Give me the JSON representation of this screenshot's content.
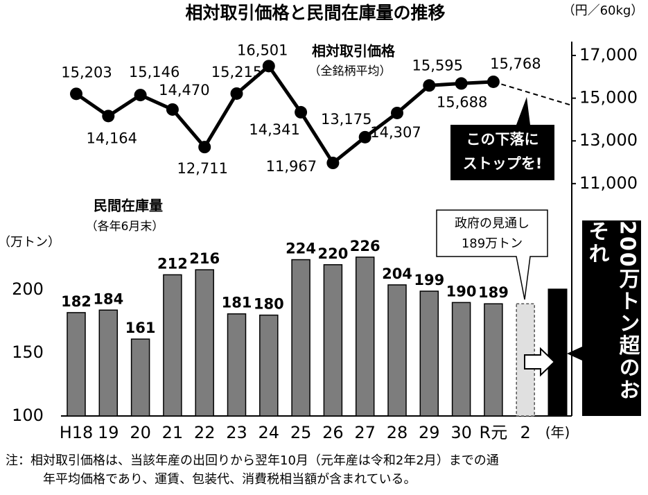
{
  "chart_data": {
    "type": "bar",
    "title": "相対取引価格と民間在庫量の推移",
    "categories": [
      "H18",
      "19",
      "20",
      "21",
      "22",
      "23",
      "24",
      "25",
      "26",
      "27",
      "28",
      "29",
      "30",
      "R元",
      "2"
    ],
    "x_label": "(年)",
    "ylabel": "（万トン）",
    "y2label": "（円／60kg）",
    "ylim": [
      100,
      386
    ],
    "yticks": [
      100,
      150,
      200
    ],
    "y2lim": [
      120,
      17000
    ],
    "y2ticks": [
      {
        "value": 11000,
        "label": "11,000"
      },
      {
        "value": 13000,
        "label": "13,000"
      },
      {
        "value": 15000,
        "label": "15,000"
      },
      {
        "value": 17000,
        "label": "17,000"
      }
    ],
    "series": [
      {
        "name": "民間在庫量",
        "note": "（各年6月末）",
        "type": "bar",
        "color": "#7d7d7d",
        "values": [
          182,
          184,
          161,
          212,
          216,
          181,
          180,
          224,
          220,
          226,
          204,
          199,
          190,
          189,
          null
        ]
      },
      {
        "name": "相対取引価格",
        "note": "（全銘柄平均）",
        "type": "line",
        "axis": "y2",
        "color": "#000000",
        "values": [
          15203,
          14164,
          15146,
          14470,
          12711,
          15215,
          16501,
          14341,
          11967,
          13175,
          14307,
          15595,
          15688,
          15768,
          null
        ],
        "value_labels": [
          "15,203",
          "14,164",
          "15,146",
          "14,470",
          "12,711",
          "15,215",
          "16,501",
          "14,341",
          "11,967",
          "13,175",
          "14,307",
          "15,595",
          "15,688",
          "15,768",
          null
        ]
      }
    ],
    "annotations": {
      "stop": [
        "この下落に",
        "ストップを!"
      ],
      "forecast": {
        "label": "政府の見通し",
        "value": 189,
        "value_label": "189万トン"
      },
      "outlook": {
        "value": 201,
        "label": "200万トン超のおそれ"
      }
    },
    "footnote": [
      "注：相対取引価格は、当該年産の出回りから翌年10月（元年産は令和2年2月）までの通",
      "年平均価格であり、運賃、包装代、消費税相当額が含まれている。"
    ]
  }
}
